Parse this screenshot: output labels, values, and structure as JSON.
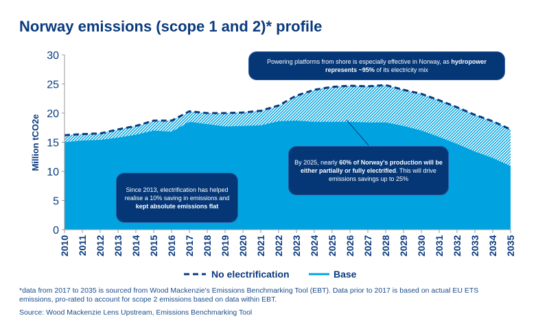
{
  "title": "Norway emissions (scope 1 and 2)* profile",
  "chart_data": {
    "type": "area",
    "ylabel": "Million tCO2e",
    "ylim": [
      0,
      30
    ],
    "yticks": [
      0,
      5,
      10,
      15,
      20,
      25,
      30
    ],
    "x": [
      2010,
      2011,
      2012,
      2013,
      2014,
      2015,
      2016,
      2017,
      2018,
      2019,
      2020,
      2021,
      2022,
      2023,
      2024,
      2025,
      2026,
      2027,
      2028,
      2029,
      2030,
      2031,
      2032,
      2033,
      2034,
      2035
    ],
    "series": [
      {
        "name": "No electrification",
        "style": "dashed-line-hatched-area",
        "color": "#0a3a7e",
        "values": [
          16.2,
          16.4,
          16.5,
          17.2,
          17.8,
          18.7,
          18.7,
          20.3,
          20.0,
          20.0,
          20.1,
          20.4,
          21.3,
          23.0,
          24.0,
          24.5,
          24.7,
          24.6,
          24.8,
          24.0,
          23.3,
          22.2,
          21.0,
          19.7,
          18.6,
          17.2
        ]
      },
      {
        "name": "Base",
        "style": "solid-area",
        "color": "#00a3e0",
        "values": [
          15.0,
          15.3,
          15.4,
          15.8,
          16.3,
          17.0,
          16.8,
          18.5,
          18.1,
          17.7,
          17.8,
          17.9,
          18.6,
          18.7,
          18.5,
          18.5,
          18.5,
          18.4,
          18.4,
          17.8,
          17.0,
          15.9,
          14.7,
          13.4,
          12.3,
          10.9
        ]
      }
    ],
    "legend_placement": "bottom",
    "grid": false
  },
  "annotations": {
    "top": {
      "pre": "Powering platforms from shore is especially effective in Norway, as ",
      "bold": "hydropower represents ~95%",
      "post": " of its electricity mix"
    },
    "left": {
      "pre": "Since 2013, electrification has helped realise a 10% saving in emissions and ",
      "bold": "kept absolute emissions flat",
      "post": ""
    },
    "right": {
      "pre": "By 2025, nearly ",
      "bold": "60% of Norway's production will be either partially or fully electrified",
      "post": ". This will drive emissions savings up to 25%"
    }
  },
  "footnote": "*data from 2017 to 2035 is sourced from Wood Mackenzie's Emissions Benchmarking Tool (EBT). Data prior to 2017 is based on actual EU ETS emissions, pro-rated to account for scope 2 emissions based on data within EBT.",
  "source": "Source: Wood Mackenzie Lens Upstream, Emissions Benchmarking Tool"
}
